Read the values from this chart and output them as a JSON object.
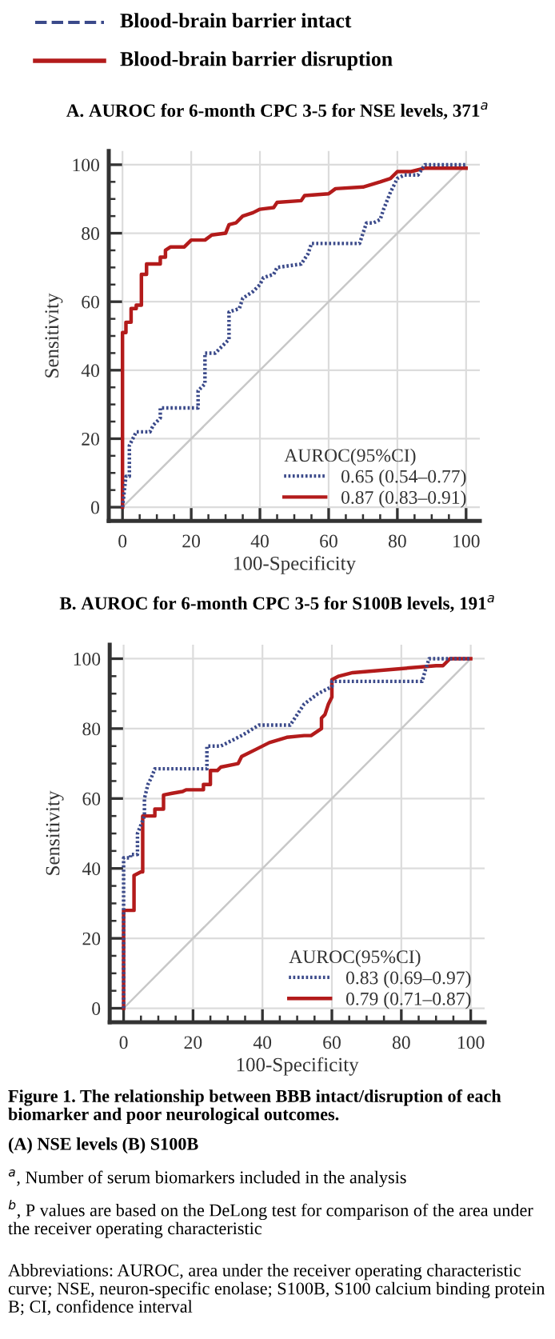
{
  "chart_data": [
    {
      "type": "line",
      "title": "A. AUROC for 6-month CPC 3-5 for NSE levels, 371$^{a}$",
      "xlabel": "100-Specificity",
      "ylabel": "Sensitivity",
      "legend_title": "AUROC(95%CI)",
      "legend": "bottom right",
      "grid": true,
      "marker": "none",
      "xlim": [
        -4,
        104
      ],
      "ylim": [
        -4,
        104
      ],
      "xticks": [
        0,
        20,
        40,
        60,
        80,
        100
      ],
      "yticks": [
        0,
        20,
        40,
        60,
        80,
        100
      ],
      "annotations": [
        "Blood-brain barrier intact",
        "Blood-brain barrier disruption"
      ],
      "series": [
        {
          "name": "0.65 (0.54–0.77)",
          "color": "#3b4a8a",
          "line_style": "dotted",
          "x": [
            0,
            1,
            2,
            2,
            3,
            4,
            8,
            9,
            10,
            11,
            11,
            22,
            22,
            24,
            24,
            27,
            29,
            31,
            31,
            34,
            35,
            38,
            40,
            41,
            44,
            45,
            52,
            54,
            55,
            69,
            70,
            71,
            73,
            75,
            76,
            78,
            80,
            82,
            86,
            88,
            100
          ],
          "values": [
            0,
            9,
            9,
            18,
            20,
            22,
            22,
            24,
            25,
            26,
            29,
            29,
            34,
            36,
            45,
            45,
            47,
            49,
            57,
            58,
            61,
            63,
            65,
            67,
            68,
            70,
            71,
            74,
            77,
            77,
            80,
            83,
            83,
            84,
            87,
            92,
            96,
            97,
            97,
            100,
            100
          ]
        },
        {
          "name": "0.87 (0.83–0.91)",
          "color": "#b31b1b",
          "line_style": "solid",
          "x": [
            0,
            0,
            1,
            1,
            2.5,
            2.5,
            4,
            4,
            5.5,
            5.5,
            7,
            7,
            11,
            11,
            12.5,
            12.5,
            14,
            18,
            20,
            24,
            26,
            30,
            31,
            33,
            35,
            38,
            40,
            44,
            45,
            52,
            53,
            60,
            62,
            70,
            75,
            78,
            80,
            84,
            88,
            100
          ],
          "values": [
            0,
            51,
            51,
            54,
            54,
            58,
            58,
            59,
            59,
            68,
            68,
            71,
            71,
            73,
            73,
            75,
            76,
            76,
            78,
            78,
            79.5,
            80,
            82.5,
            83,
            85,
            86,
            87,
            87.5,
            89,
            89.5,
            91,
            91.5,
            93,
            93.5,
            95,
            96,
            98,
            98,
            99,
            99
          ]
        },
        {
          "color": "#c8c8c8",
          "line_style": "solid",
          "x": [
            0,
            100
          ],
          "values": [
            0,
            100
          ]
        }
      ]
    },
    {
      "type": "line",
      "title": "B. AUROC for 6-month CPC 3-5 for S100B levels, 191$^{a}$",
      "xlabel": "100-Specificity",
      "ylabel": "Sensitivity",
      "legend_title": "AUROC(95%CI)",
      "legend": "bottom right",
      "grid": true,
      "marker": "none",
      "xlim": [
        -4,
        104
      ],
      "ylim": [
        -4,
        104
      ],
      "xticks": [
        0,
        20,
        40,
        60,
        80,
        100
      ],
      "yticks": [
        0,
        20,
        40,
        60,
        80,
        100
      ],
      "annotations": [
        "Figure 1. The relationship between BBB intact/disruption of each biomarker and poor neurological outcomes.",
        "(A) NSE levels (B) S100B",
        "$^{a}$, Number of serum biomarkers included in the analysis",
        "$^{b}$, P values are based on the DeLong test for comparison of the area under the receiver operating characteristic",
        "Abbreviations: AUROC, area under the receiver operating characteristic curve; NSE, neuron-specific enolase; S100B, S100 calcium binding protein B; CI, confidence interval"
      ],
      "series": [
        {
          "name": "0.83 (0.69–0.97)",
          "color": "#3b4a8a",
          "line_style": "dotted",
          "x": [
            0,
            0,
            0,
            2,
            2,
            4,
            4,
            6,
            6,
            7,
            8,
            9,
            24,
            24,
            28,
            30,
            34,
            39,
            48,
            50,
            52,
            56,
            60,
            60,
            86,
            87,
            88,
            100
          ],
          "values": [
            0,
            29,
            43,
            43,
            44,
            44,
            50,
            55,
            60,
            64,
            66,
            68.5,
            68.5,
            75,
            75,
            76,
            78,
            81,
            81,
            84,
            87,
            90,
            92,
            93.5,
            93.5,
            97,
            100,
            100
          ]
        },
        {
          "name": "0.79 (0.71–0.87)",
          "color": "#b31b1b",
          "line_style": "solid",
          "x": [
            0,
            0,
            3,
            3,
            5,
            5.5,
            5.5,
            9,
            9,
            11.5,
            11.5,
            14,
            17,
            18,
            23,
            23,
            25,
            25,
            27,
            28,
            33,
            34,
            38,
            42,
            47,
            52,
            54,
            57,
            57,
            58,
            59,
            60,
            60,
            62,
            66,
            90,
            92,
            94,
            100
          ],
          "values": [
            0,
            28,
            28,
            38,
            39,
            39,
            55,
            55,
            57,
            57,
            61,
            61.5,
            62,
            62.5,
            62.5,
            64,
            64,
            68,
            68,
            69,
            70,
            72,
            74,
            76,
            77.5,
            78,
            78,
            80,
            83,
            84,
            87,
            89,
            94,
            95,
            96,
            98,
            98,
            100,
            100
          ]
        },
        {
          "color": "#c8c8c8",
          "line_style": "solid",
          "x": [
            0,
            100
          ],
          "values": [
            0,
            100
          ]
        }
      ]
    }
  ]
}
